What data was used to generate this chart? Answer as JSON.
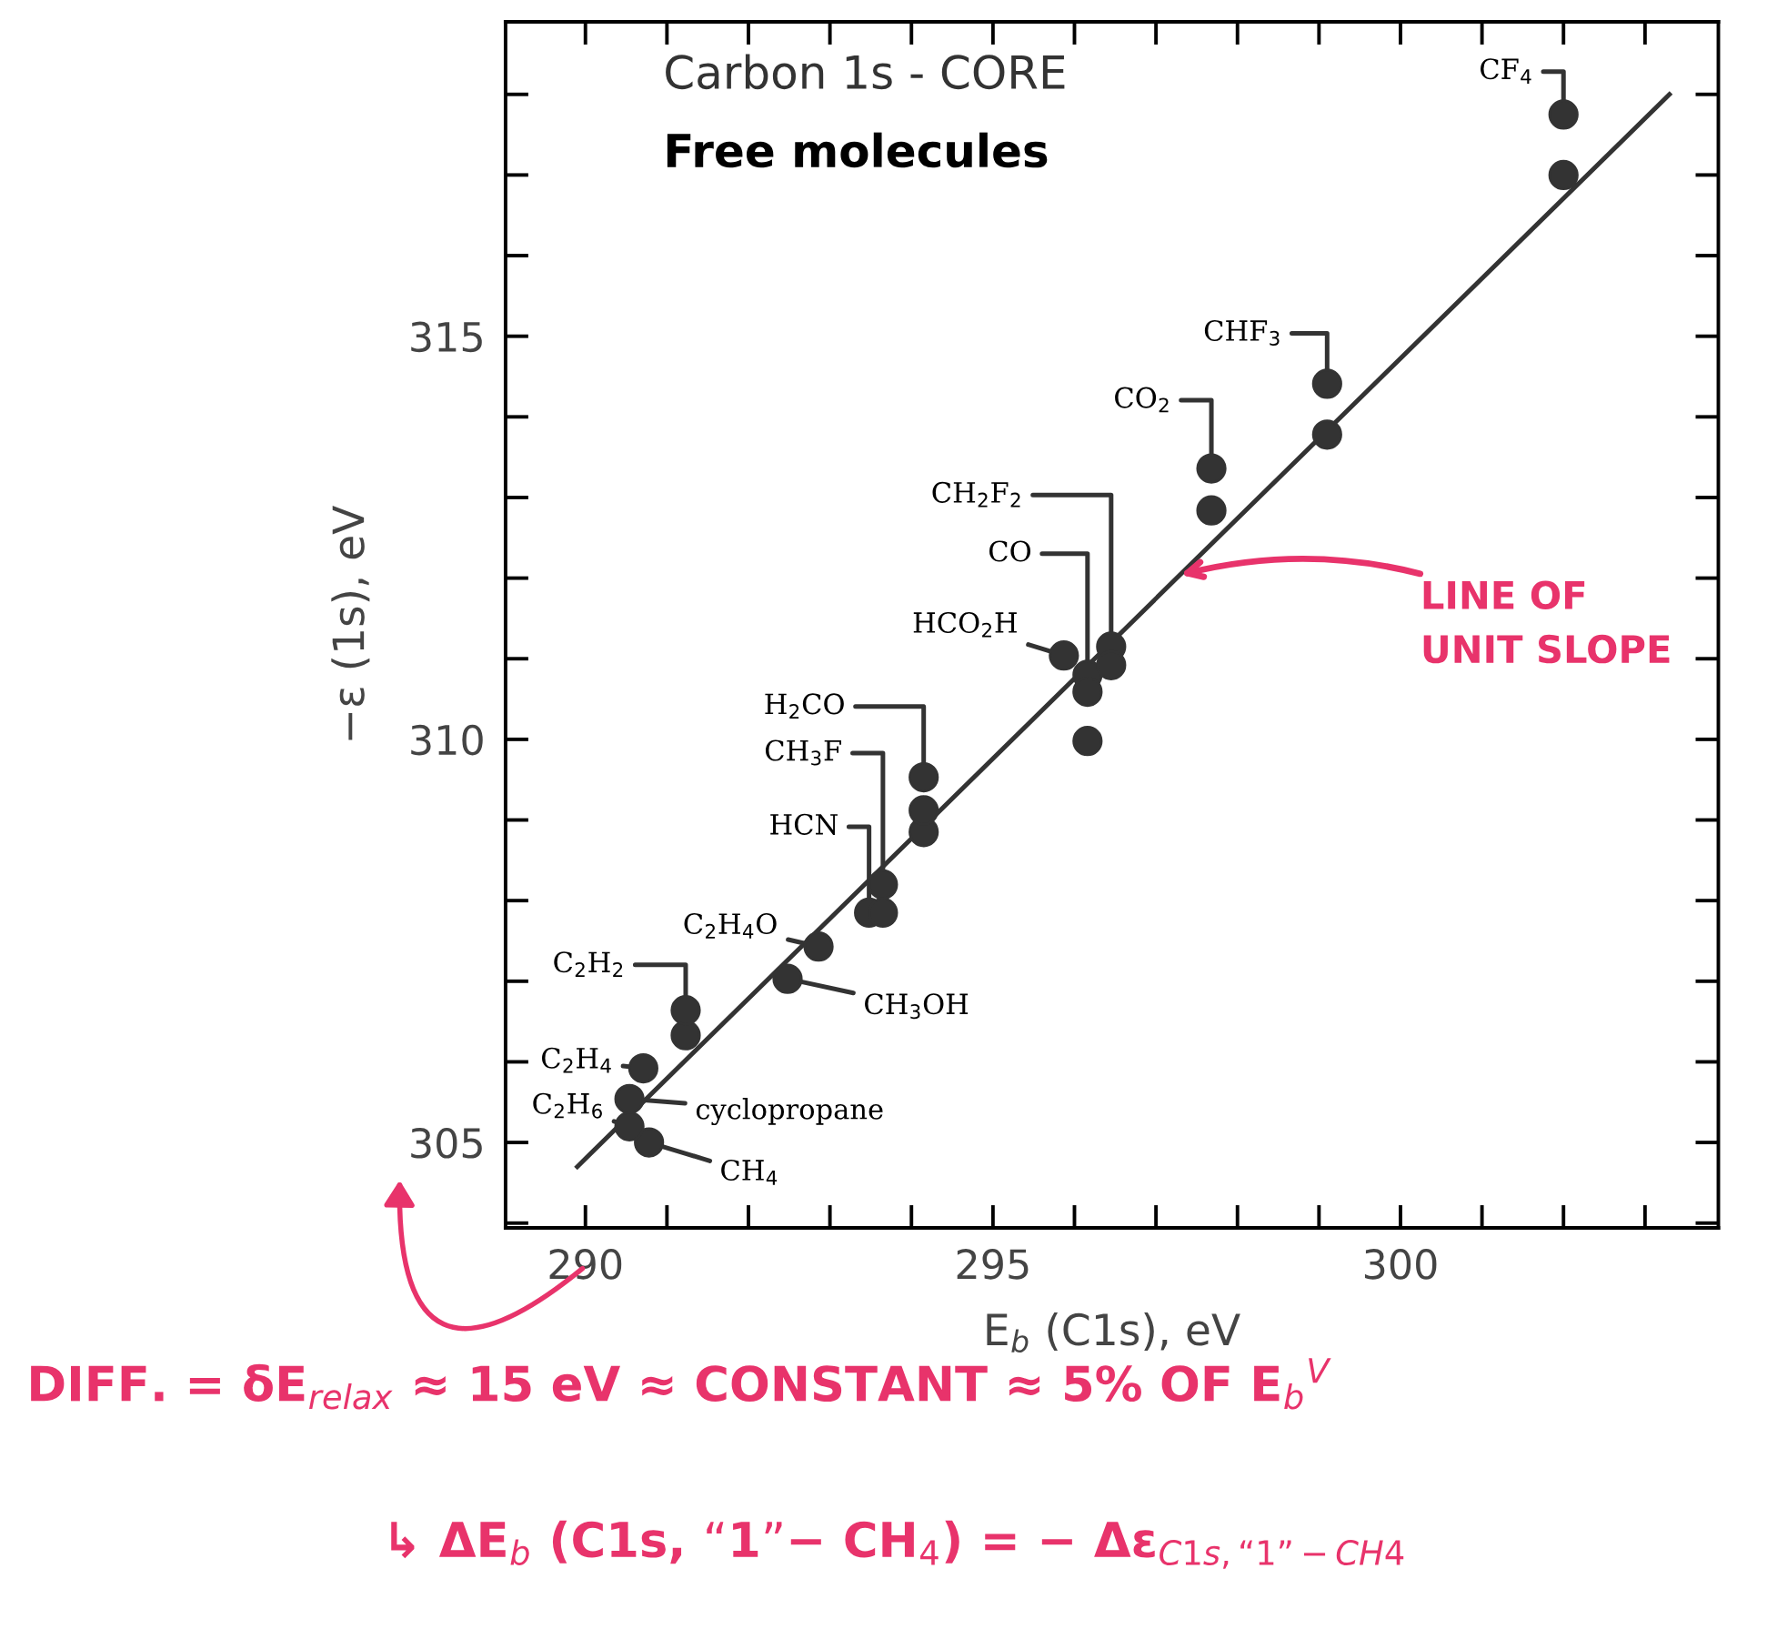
{
  "chart_data": {
    "type": "scatter",
    "title": "Carbon 1s - CORE",
    "subtitle": "Free molecules",
    "xlabel": "E$_{b}$ (C1s), eV",
    "ylabel": "−ε (1s), eV",
    "xlim": [
      289.02,
      303.9
    ],
    "ylim": [
      303.94,
      318.9
    ],
    "xticks": [
      290,
      {
        "value": 291,
        "label": null
      },
      {
        "value": 292,
        "label": null
      },
      {
        "value": 293,
        "label": null
      },
      {
        "value": 294,
        "label": null
      },
      295,
      {
        "value": 296,
        "label": null
      },
      {
        "value": 297,
        "label": null
      },
      {
        "value": 298,
        "label": null
      },
      {
        "value": 299,
        "label": null
      },
      300,
      {
        "value": 301,
        "label": null
      },
      {
        "value": 302,
        "label": null
      },
      {
        "value": 303,
        "label": null
      }
    ],
    "yticks": [
      {
        "value": 304,
        "label": null
      },
      305,
      {
        "value": 306,
        "label": null
      },
      {
        "value": 307,
        "label": null
      },
      {
        "value": 308,
        "label": null
      },
      {
        "value": 309,
        "label": null
      },
      310,
      {
        "value": 311,
        "label": null
      },
      {
        "value": 312,
        "label": null
      },
      {
        "value": 313,
        "label": null
      },
      {
        "value": 314,
        "label": null
      },
      315,
      {
        "value": 316,
        "label": null
      },
      {
        "value": 317,
        "label": null
      },
      {
        "value": 318,
        "label": null
      }
    ],
    "grid": false,
    "marker": "circle",
    "series": [
      {
        "type": "scatter",
        "color": "#333333",
        "x": [
          290.78,
          290.54,
          290.54,
          290.71,
          291.23,
          291.23,
          292.48,
          292.86,
          293.48,
          293.65,
          293.65,
          294.15,
          294.15,
          294.15,
          295.87,
          296.16,
          296.16,
          296.16,
          296.45,
          296.45,
          297.68,
          297.68,
          299.1,
          299.1,
          302.0,
          302.0
        ],
        "values": [
          305.0,
          305.2,
          305.54,
          305.92,
          306.33,
          306.64,
          307.03,
          307.43,
          307.85,
          307.85,
          308.2,
          308.85,
          309.12,
          309.53,
          311.04,
          310.8,
          310.59,
          309.98,
          311.15,
          310.92,
          312.84,
          313.36,
          313.78,
          314.41,
          317.0,
          317.75
        ]
      },
      {
        "type": "line",
        "color": "#333333",
        "marker": "none",
        "x": [
          289.9,
          303.3
        ],
        "values": [
          304.7,
          318.0
        ]
      }
    ],
    "annotations": [
      {
        "text": "CH$_{4}$",
        "x": 290.78,
        "y": 305.0
      },
      {
        "text": "C$_{2}$H$_{6}$",
        "x": 290.54,
        "y": 305.2
      },
      {
        "text": "cyclopropane",
        "x": 290.54,
        "y": 305.54
      },
      {
        "text": "C$_{2}$H$_{4}$",
        "x": 290.71,
        "y": 305.92
      },
      {
        "text": "C$_{2}$H$_{2}$",
        "x": 291.23,
        "y": 306.64
      },
      {
        "text": "CH$_{3}$OH",
        "x": 292.48,
        "y": 307.03
      },
      {
        "text": "C$_{2}$H$_{4}$O",
        "x": 292.86,
        "y": 307.43
      },
      {
        "text": "HCN",
        "x": 293.48,
        "y": 307.85
      },
      {
        "text": "CH$_{3}$F",
        "x": 293.65,
        "y": 308.2
      },
      {
        "text": "H$_{2}$CO",
        "x": 294.15,
        "y": 309.53
      },
      {
        "text": "HCO$_{2}$H",
        "x": 295.87,
        "y": 311.04
      },
      {
        "text": "CO",
        "x": 296.16,
        "y": 310.8
      },
      {
        "text": "CH$_{2}$F$_{2}$",
        "x": 296.45,
        "y": 311.15
      },
      {
        "text": "CO$_{2}$",
        "x": 297.68,
        "y": 313.36
      },
      {
        "text": "CHF$_{3}$",
        "x": 299.1,
        "y": 314.41
      },
      {
        "text": "CF$_{4}$",
        "x": 302.0,
        "y": 317.75
      },
      {
        "text": "LINE OF\nUNIT SLOPE",
        "x": 297.3,
        "y": 312.04
      },
      "DIFF. = δE$_{relax}$ ≈ 15 eV ≈ CONSTANT ≈ 5% OF E$_{b}$$^{V}$",
      "↳ ΔE$_{b}$ (C1s, “1”− CH$_{4}$) = − Δε$_{C1s,“1”−CH4}$"
    ]
  }
}
